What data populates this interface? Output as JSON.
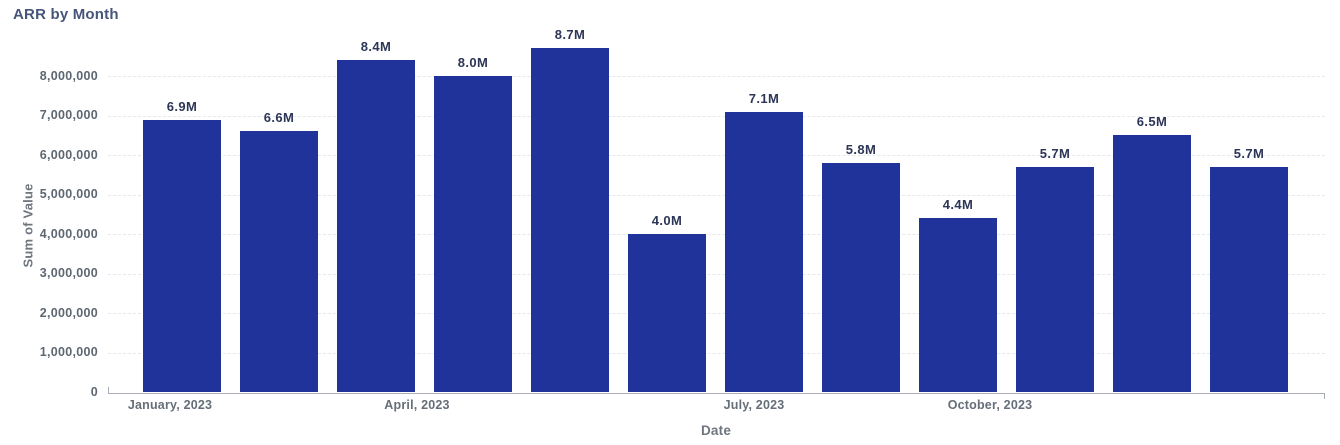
{
  "chart_data": {
    "type": "bar",
    "title": "ARR by Month",
    "xlabel": "Date",
    "ylabel": "Sum of Value",
    "values": [
      6900000,
      6600000,
      8400000,
      8000000,
      8700000,
      4000000,
      7100000,
      5800000,
      4400000,
      5700000,
      6500000,
      5700000
    ],
    "bar_labels": [
      "6.9M",
      "6.6M",
      "8.4M",
      "8.0M",
      "8.7M",
      "4.0M",
      "7.1M",
      "5.8M",
      "4.4M",
      "5.7M",
      "6.5M",
      "5.7M"
    ],
    "x_tick_labels": [
      "January, 2023",
      "April, 2023",
      "July, 2023",
      "October, 2023"
    ],
    "y_tick_labels": [
      "0",
      "1,000,000",
      "2,000,000",
      "3,000,000",
      "4,000,000",
      "5,000,000",
      "6,000,000",
      "7,000,000",
      "8,000,000"
    ],
    "ylim": [
      0,
      8800000
    ],
    "y_tick_step": 1000000,
    "grid": "horizontal-dashed",
    "legend": "none",
    "bar_color": "#20339B",
    "background_color": "#ffffff"
  }
}
